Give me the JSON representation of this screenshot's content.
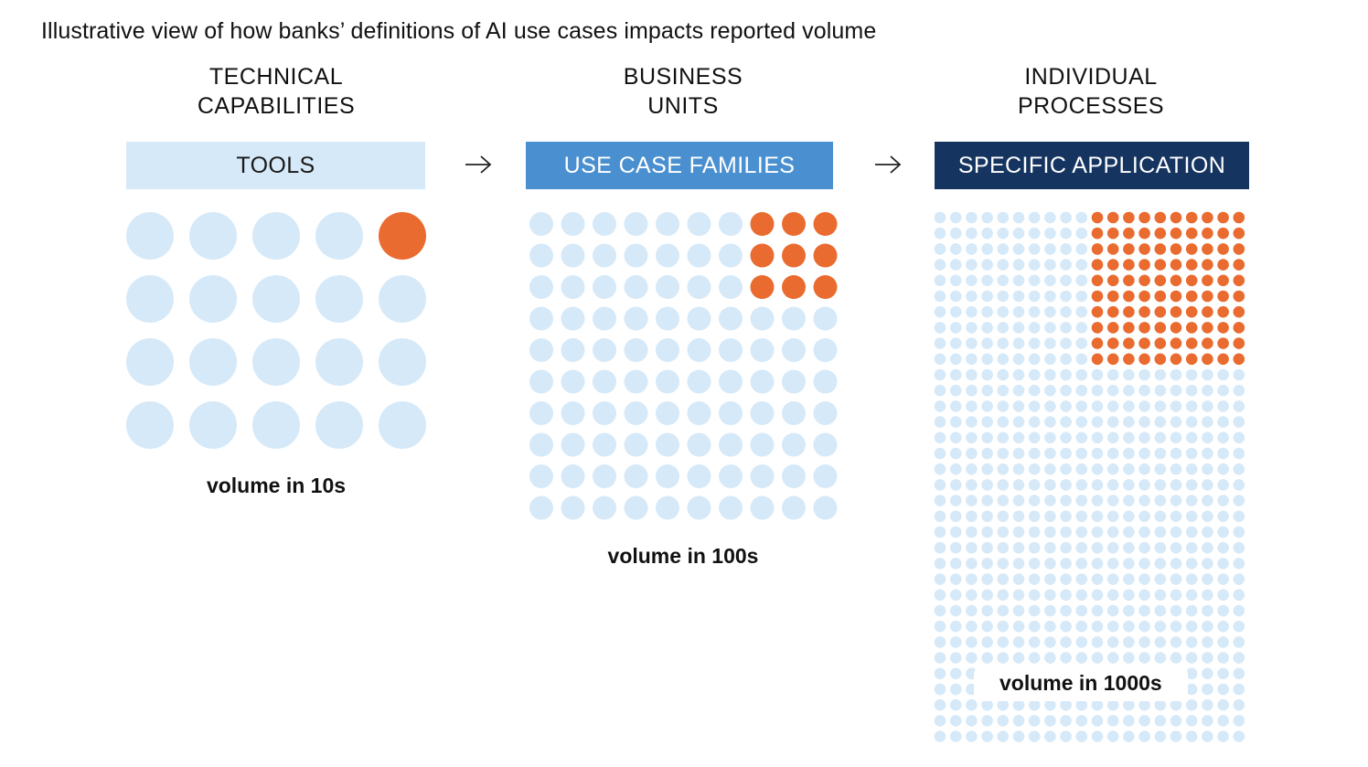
{
  "title": "Illustrative view of how banks’ definitions of AI use cases impacts reported volume",
  "colors": {
    "light_dot": "#d6e9f8",
    "highlight_dot": "#ea6b2f",
    "tools_box": "#d6e9f8",
    "families_box": "#4a90d0",
    "application_box": "#163460"
  },
  "columns": [
    {
      "header_line1": "TECHNICAL",
      "header_line2": "CAPABILITIES",
      "box_label": "TOOLS",
      "volume_label": "volume in 10s",
      "grid": {
        "cols": 5,
        "rows": 4,
        "highlight_cols": 1,
        "highlight_rows": 1
      }
    },
    {
      "header_line1": "BUSINESS",
      "header_line2": "UNITS",
      "box_label": "USE CASE FAMILIES",
      "volume_label": "volume in 100s",
      "grid": {
        "cols": 10,
        "rows": 10,
        "highlight_cols": 3,
        "highlight_rows": 3
      }
    },
    {
      "header_line1": "INDIVIDUAL",
      "header_line2": "PROCESSES",
      "box_label": "SPECIFIC APPLICATION",
      "volume_label": "volume in 1000s",
      "grid": {
        "cols": 20,
        "rows": 34,
        "highlight_cols": 10,
        "highlight_rows": 10
      }
    }
  ],
  "arrow_icon": "right-arrow-icon"
}
